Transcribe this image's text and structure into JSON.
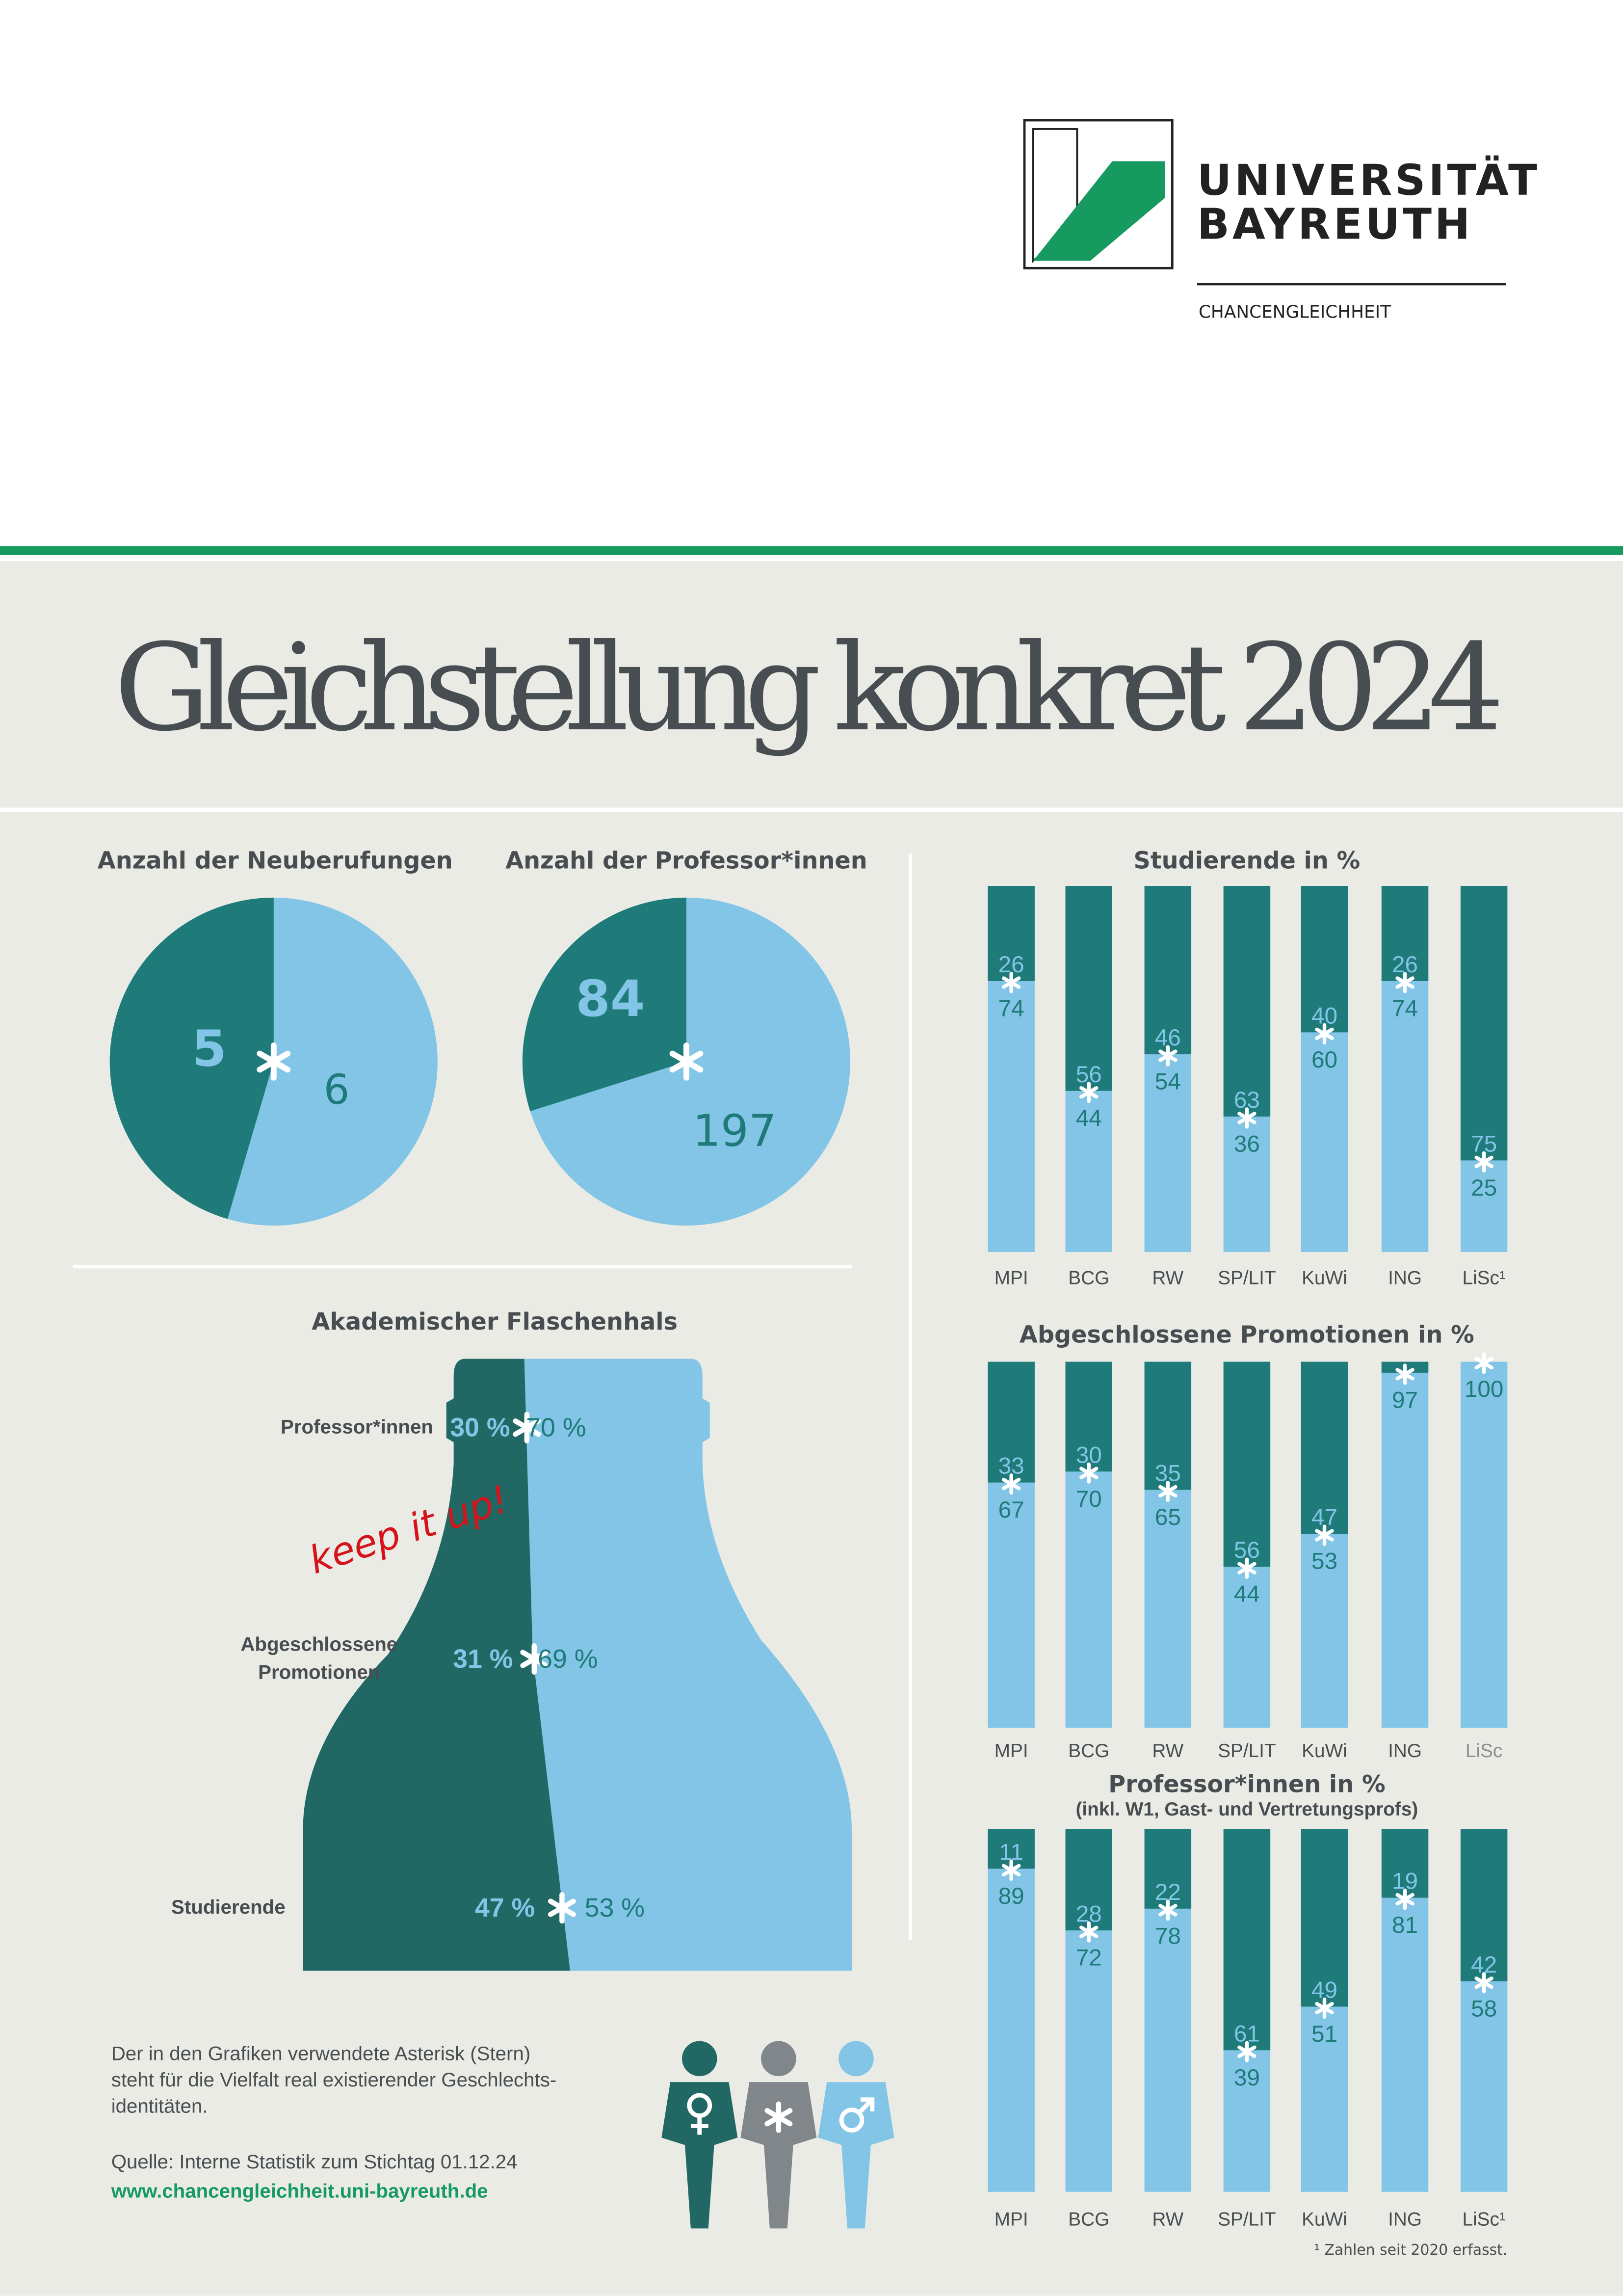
{
  "header": {
    "logo_line1": "UNIVERSITÄT",
    "logo_line2": "BAYREUTH",
    "department": "CHANCENGLEICHHEIT"
  },
  "title": "Gleichstellung konkret 2024",
  "colors": {
    "female": "#1f7b7a",
    "male": "#82c5e6",
    "bottle_female": "#216864",
    "background": "#ebebe6",
    "green": "#169a5f",
    "text": "#474d50"
  },
  "chart_data": [
    {
      "type": "pie",
      "title": "Anzahl der Neuberufungen",
      "labels": [
        "female",
        "male"
      ],
      "values": [
        5,
        6
      ]
    },
    {
      "type": "pie",
      "title": "Anzahl der Professor*innen",
      "labels": [
        "female",
        "male"
      ],
      "values": [
        84,
        197
      ]
    },
    {
      "type": "bar",
      "stacked": true,
      "title": "Studierende in %",
      "categories": [
        "MPI",
        "BCG",
        "RW",
        "SP/LIT",
        "KuWi",
        "ING",
        "LiSc¹"
      ],
      "series": [
        {
          "name": "female",
          "values": [
            26,
            56,
            46,
            63,
            40,
            26,
            75
          ]
        },
        {
          "name": "male",
          "values": [
            74,
            44,
            54,
            36,
            60,
            74,
            25
          ]
        }
      ],
      "ylim": [
        0,
        100
      ]
    },
    {
      "type": "bar",
      "stacked": true,
      "title": "Abgeschlossene Promotionen in %",
      "categories": [
        "MPI",
        "BCG",
        "RW",
        "SP/LIT",
        "KuWi",
        "ING",
        "LiSc"
      ],
      "series": [
        {
          "name": "female",
          "values": [
            33,
            30,
            35,
            56,
            47,
            3,
            0
          ]
        },
        {
          "name": "male",
          "values": [
            67,
            70,
            65,
            44,
            53,
            97,
            100
          ]
        }
      ],
      "female_labels_shown": [
        true,
        true,
        true,
        true,
        true,
        false,
        false
      ],
      "ylim": [
        0,
        100
      ]
    },
    {
      "type": "bar",
      "stacked": true,
      "title": "Professor*innen in %",
      "subtitle": "(inkl. W1, Gast- und Vertretungsprofs)",
      "categories": [
        "MPI",
        "BCG",
        "RW",
        "SP/LIT",
        "KuWi",
        "ING",
        "LiSc¹"
      ],
      "series": [
        {
          "name": "female",
          "values": [
            11,
            28,
            22,
            61,
            49,
            19,
            42
          ]
        },
        {
          "name": "male",
          "values": [
            89,
            72,
            78,
            39,
            51,
            81,
            58
          ]
        }
      ],
      "ylim": [
        0,
        100
      ]
    },
    {
      "type": "bar",
      "title": "Akademischer Flaschenhals",
      "categories": [
        "Professor*innen",
        "Abgeschlossene Promotionen",
        "Studierende"
      ],
      "series": [
        {
          "name": "female",
          "values": [
            30,
            31,
            47
          ]
        },
        {
          "name": "male",
          "values": [
            70,
            69,
            53
          ]
        }
      ],
      "unit": "%"
    }
  ],
  "bottle": {
    "annotation": "keep it up!",
    "labels": [
      "Professor*innen",
      "Abgeschlossene",
      "Promotionen",
      "Studierende"
    ]
  },
  "footnote": "¹ Zahlen seit 2020 erfasst.",
  "footer": {
    "note_lines": [
      "Der in den Grafiken verwendete Asterisk (Stern)",
      "steht für die Vielfalt real existierender Geschlechts-",
      "identitäten."
    ],
    "source": "Quelle: Interne Statistik zum Stichtag 01.12.24",
    "link": "www.chancengleichheit.uni-bayreuth.de"
  },
  "icons": [
    "female-symbol-icon",
    "asterisk-icon",
    "male-symbol-icon"
  ]
}
